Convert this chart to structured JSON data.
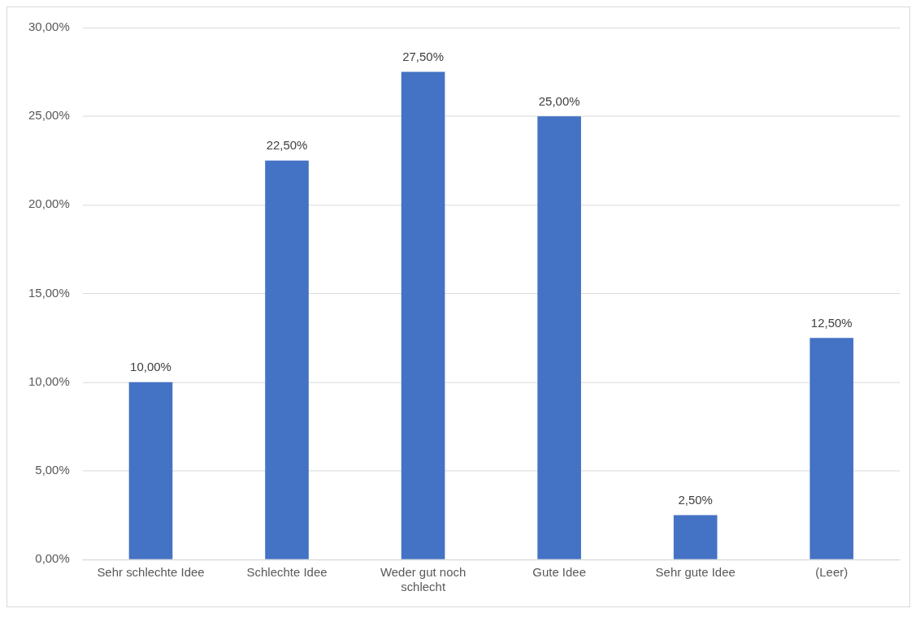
{
  "chart_data": {
    "type": "bar",
    "categories": [
      "Sehr schlechte Idee",
      "Schlechte Idee",
      "Weder gut noch schlecht",
      "Gute Idee",
      "Sehr gute Idee",
      "(Leer)"
    ],
    "values": [
      10,
      22.5,
      27.5,
      25,
      2.5,
      12.5
    ],
    "value_labels": [
      "10,00%",
      "22,50%",
      "27,50%",
      "25,00%",
      "2,50%",
      "12,50%"
    ],
    "color": "#4472c4",
    "ylim": [
      0,
      30
    ],
    "yticks": [
      {
        "value": 0,
        "label": "0,00%"
      },
      {
        "value": 5,
        "label": "5,00%"
      },
      {
        "value": 10,
        "label": "10,00%"
      },
      {
        "value": 15,
        "label": "15,00%"
      },
      {
        "value": 20,
        "label": "20,00%"
      },
      {
        "value": 25,
        "label": "25,00%"
      },
      {
        "value": 30,
        "label": "30,00%"
      }
    ],
    "grid": "y",
    "legend": false
  }
}
